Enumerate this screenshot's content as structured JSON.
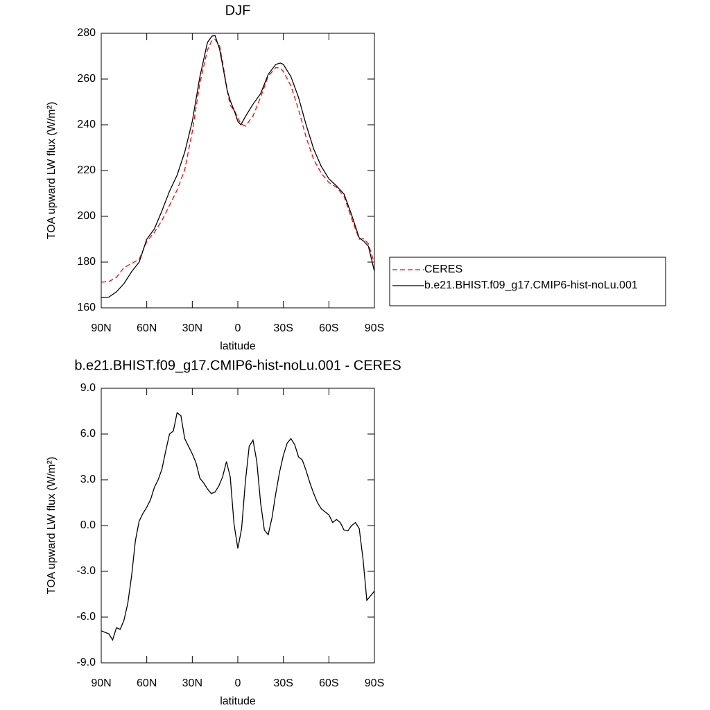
{
  "chart_data": [
    {
      "type": "line",
      "title": "DJF",
      "xlabel": "latitude",
      "ylabel": "TOA upward LW flux (W/m²)",
      "x": [
        90,
        85,
        80,
        75,
        70,
        65,
        60,
        55,
        50,
        45,
        40,
        35,
        30,
        25,
        20,
        17,
        15,
        12,
        10,
        7,
        5,
        2,
        0,
        -2,
        -5,
        -10,
        -15,
        -20,
        -25,
        -28,
        -30,
        -35,
        -40,
        -45,
        -50,
        -55,
        -60,
        -65,
        -70,
        -75,
        -80,
        -83,
        -86,
        -90
      ],
      "series": [
        {
          "name": "CERES",
          "color": "#ff0000",
          "linestyle": "dashed",
          "values": [
            171.2,
            171.5,
            173.3,
            177.6,
            179.4,
            181.2,
            189,
            193,
            198.2,
            204.8,
            211.5,
            220.3,
            237,
            258.2,
            272.7,
            277,
            277.3,
            274.5,
            267.3,
            255,
            248.5,
            246,
            243,
            240.5,
            239.4,
            243.9,
            252,
            261.2,
            265,
            264.8,
            263.3,
            257,
            246.7,
            234.5,
            224.8,
            218.8,
            214.8,
            212.7,
            208.8,
            199,
            190,
            190.3,
            188,
            179.4
          ]
        },
        {
          "name": "b.e21.BHIST.f09_g17.CMIP6-hist-noLu.001",
          "color": "#000000",
          "linestyle": "solid",
          "values": [
            164.5,
            164.7,
            167,
            170.6,
            175.8,
            180,
            190,
            194.5,
            202.4,
            211,
            218,
            228,
            241.5,
            261,
            276,
            278.8,
            279,
            273,
            266,
            255,
            250.6,
            245.5,
            241.5,
            240,
            243.6,
            249,
            253.6,
            262,
            266.4,
            267,
            266.4,
            261,
            252,
            240,
            229.4,
            221.8,
            216.4,
            213.3,
            209.7,
            200.6,
            190.6,
            189.1,
            187,
            176
          ]
        }
      ],
      "xlim": [
        90,
        -90
      ],
      "xticks": [
        {
          "value": 90,
          "label": "90N"
        },
        {
          "value": 60,
          "label": "60N"
        },
        {
          "value": 30,
          "label": "30N"
        },
        0,
        {
          "value": -30,
          "label": "30S"
        },
        {
          "value": -60,
          "label": "60S"
        },
        {
          "value": -90,
          "label": "90S"
        }
      ],
      "ylim": [
        160,
        280
      ],
      "yticks": [
        160,
        180,
        200,
        220,
        240,
        260,
        280
      ],
      "legend": "right"
    },
    {
      "type": "line",
      "title": "b.e21.BHIST.f09_g17.CMIP6-hist-noLu.001 - CERES",
      "xlabel": "latitude",
      "ylabel": "TOA upward LW flux (W/m²)",
      "x": [
        90,
        87.5,
        85,
        82.5,
        80,
        77.5,
        75,
        72.5,
        70,
        67.5,
        65,
        62.5,
        60,
        57.5,
        55,
        52.5,
        50,
        47.5,
        45,
        42.5,
        40,
        37.5,
        35,
        32.5,
        30,
        27.5,
        25,
        22.5,
        20,
        17.5,
        15,
        12.5,
        10,
        7.5,
        5,
        2.5,
        0,
        -2.5,
        -5,
        -7.5,
        -10,
        -12.5,
        -15,
        -17.5,
        -20,
        -22.5,
        -25,
        -27.5,
        -30,
        -32.5,
        -35,
        -37.5,
        -40,
        -42.5,
        -45,
        -47.5,
        -50,
        -52.5,
        -55,
        -57.5,
        -60,
        -62.5,
        -65,
        -67.5,
        -70,
        -72.5,
        -75,
        -77.5,
        -80,
        -82.5,
        -85,
        -87.5,
        -90
      ],
      "series": [
        {
          "color": "#000000",
          "linestyle": "solid",
          "values": [
            -6.9,
            -7.0,
            -7.1,
            -7.5,
            -6.7,
            -6.8,
            -6.2,
            -5.1,
            -3.3,
            -1.0,
            0.3,
            0.8,
            1.2,
            1.7,
            2.5,
            3.0,
            3.7,
            4.9,
            6.0,
            6.2,
            7.4,
            7.2,
            5.7,
            5.2,
            4.7,
            4.1,
            3.1,
            2.8,
            2.4,
            2.1,
            2.2,
            2.6,
            3.2,
            4.2,
            3.2,
            0.1,
            -1.5,
            -0.2,
            2.9,
            5.2,
            5.6,
            4.2,
            1.5,
            -0.3,
            -0.6,
            0.5,
            2.1,
            3.5,
            4.6,
            5.4,
            5.7,
            5.3,
            4.5,
            4.3,
            3.6,
            2.8,
            2.1,
            1.5,
            1.1,
            0.9,
            0.7,
            0.2,
            0.4,
            0.2,
            -0.3,
            -0.35,
            0.0,
            0.2,
            -0.2,
            -2.2,
            -4.9,
            -4.6,
            -4.3
          ]
        }
      ],
      "xlim": [
        90,
        -90
      ],
      "xticks": [
        {
          "value": 90,
          "label": "90N"
        },
        {
          "value": 60,
          "label": "60N"
        },
        {
          "value": 30,
          "label": "30N"
        },
        0,
        {
          "value": -30,
          "label": "30S"
        },
        {
          "value": -60,
          "label": "60S"
        },
        {
          "value": -90,
          "label": "90S"
        }
      ],
      "ylim": [
        -9,
        9
      ],
      "yticks": [
        {
          "value": -9,
          "label": "-9.0"
        },
        {
          "value": -6,
          "label": "-6.0"
        },
        {
          "value": -3,
          "label": "-3.0"
        },
        {
          "value": 0,
          "label": "0.0"
        },
        {
          "value": 3,
          "label": "3.0"
        },
        {
          "value": 6,
          "label": "6.0"
        },
        {
          "value": 9,
          "label": "9.0"
        }
      ]
    }
  ]
}
